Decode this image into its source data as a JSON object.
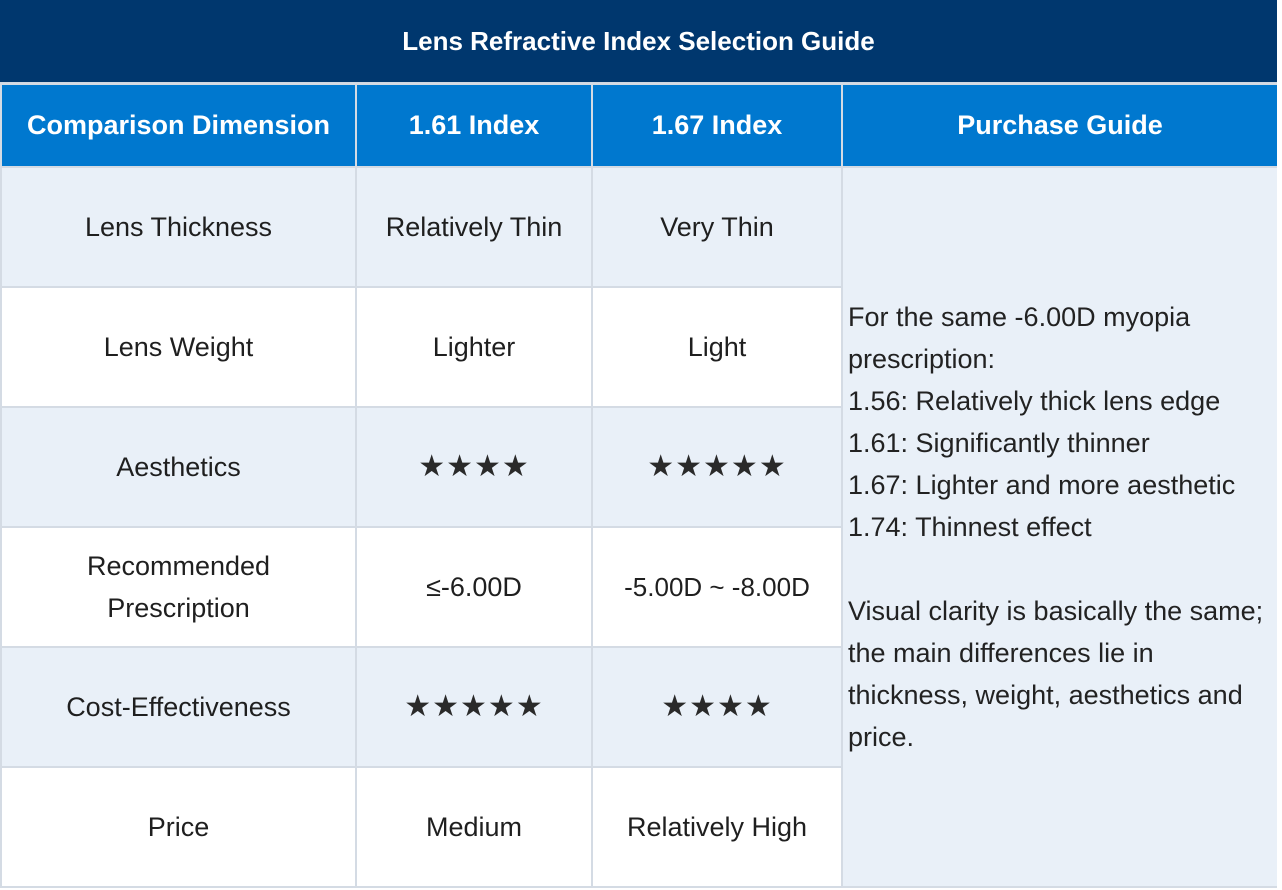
{
  "title": "Lens Refractive Index Selection Guide",
  "headers": {
    "dimension": "Comparison Dimension",
    "index161": "1.61 Index",
    "index167": "1.67 Index",
    "guide": "Purchase Guide"
  },
  "rows": [
    {
      "dimension": "Lens Thickness",
      "index161": "Relatively Thin",
      "index167": "Very Thin"
    },
    {
      "dimension": "Lens Weight",
      "index161": "Lighter",
      "index167": "Light"
    },
    {
      "dimension": "Aesthetics",
      "index161": "★★★★",
      "index167": "★★★★★",
      "index161_stars": 4,
      "index167_stars": 5
    },
    {
      "dimension": "Recommended Prescription",
      "index161": "≤-6.00D",
      "index167": "-5.00D ~ -8.00D"
    },
    {
      "dimension": "Cost-Effectiveness",
      "index161": "★★★★★",
      "index167": "★★★★",
      "index161_stars": 5,
      "index167_stars": 4
    },
    {
      "dimension": "Price",
      "index161": "Medium",
      "index167": "Relatively High"
    }
  ],
  "guide_text": {
    "line1": "For the same -6.00D myopia prescription:",
    "line2": "1.56: Relatively thick lens edge",
    "line3": "1.61: Significantly thinner",
    "line4": "1.67: Lighter and more aesthetic",
    "line5": "1.74: Thinnest effect",
    "line6": "Visual clarity is basically the same; the main differences lie in thickness, weight, aesthetics and price."
  },
  "colors": {
    "title_bg": "#00376e",
    "header_bg": "#0078cf",
    "row_alt_bg": "#e9f0f8",
    "border": "#d4dbe4"
  }
}
